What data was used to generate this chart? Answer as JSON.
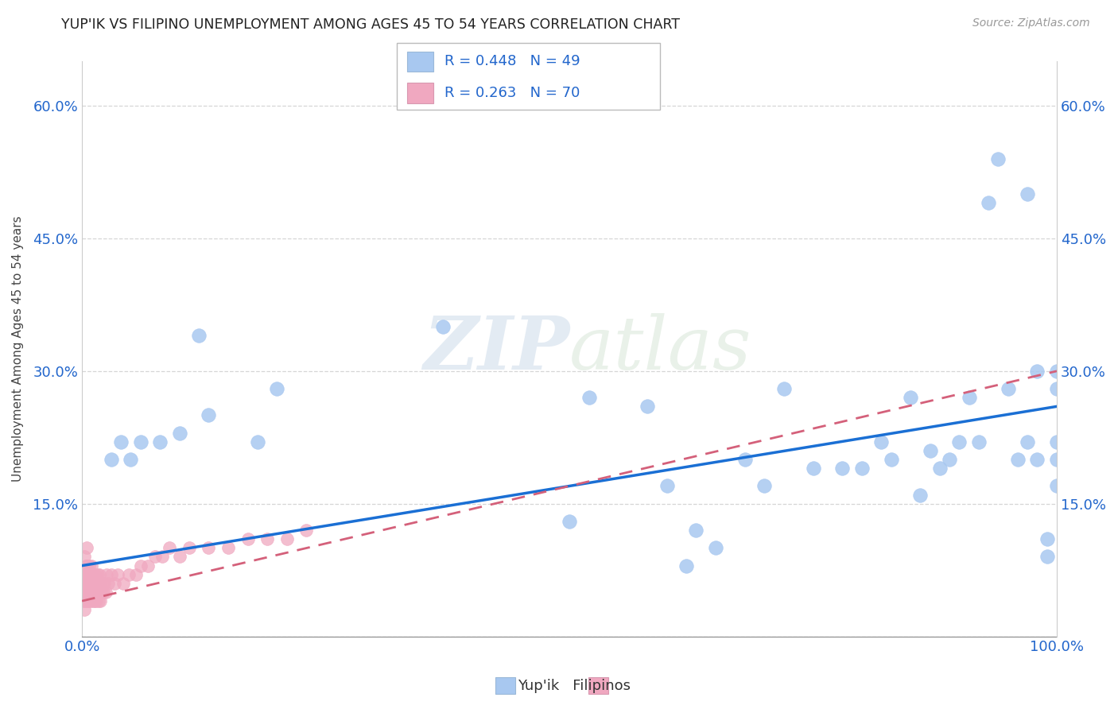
{
  "title": "YUP'IK VS FILIPINO UNEMPLOYMENT AMONG AGES 45 TO 54 YEARS CORRELATION CHART",
  "source": "Source: ZipAtlas.com",
  "ylabel": "Unemployment Among Ages 45 to 54 years",
  "xlim": [
    0.0,
    1.0
  ],
  "ylim": [
    0.0,
    0.65
  ],
  "x_ticks": [
    0.0,
    0.1,
    0.2,
    0.3,
    0.4,
    0.5,
    0.6,
    0.7,
    0.8,
    0.9,
    1.0
  ],
  "x_tick_labels": [
    "0.0%",
    "",
    "",
    "",
    "",
    "",
    "",
    "",
    "",
    "",
    "100.0%"
  ],
  "y_ticks": [
    0.0,
    0.15,
    0.3,
    0.45,
    0.6
  ],
  "y_tick_labels": [
    "",
    "15.0%",
    "30.0%",
    "45.0%",
    "60.0%"
  ],
  "legend_R": [
    "R = 0.448",
    "R = 0.263"
  ],
  "legend_N": [
    "N = 49",
    "N = 70"
  ],
  "yupik_color": "#a8c8f0",
  "filipino_color": "#f0a8c0",
  "yupik_line_color": "#1a6fd4",
  "filipino_line_color": "#d4607a",
  "watermark_zip": "ZIP",
  "watermark_atlas": "atlas",
  "yupik_x": [
    0.03,
    0.04,
    0.05,
    0.06,
    0.08,
    0.1,
    0.12,
    0.13,
    0.18,
    0.2,
    0.37,
    0.5,
    0.52,
    0.58,
    0.6,
    0.62,
    0.63,
    0.65,
    0.68,
    0.7,
    0.72,
    0.75,
    0.78,
    0.8,
    0.82,
    0.83,
    0.85,
    0.86,
    0.87,
    0.88,
    0.89,
    0.9,
    0.91,
    0.92,
    0.93,
    0.94,
    0.95,
    0.96,
    0.97,
    0.97,
    0.98,
    0.98,
    0.99,
    0.99,
    1.0,
    1.0,
    1.0,
    1.0,
    1.0
  ],
  "yupik_y": [
    0.2,
    0.22,
    0.2,
    0.22,
    0.22,
    0.23,
    0.34,
    0.25,
    0.22,
    0.28,
    0.35,
    0.13,
    0.27,
    0.26,
    0.17,
    0.08,
    0.12,
    0.1,
    0.2,
    0.17,
    0.28,
    0.19,
    0.19,
    0.19,
    0.22,
    0.2,
    0.27,
    0.16,
    0.21,
    0.19,
    0.2,
    0.22,
    0.27,
    0.22,
    0.49,
    0.54,
    0.28,
    0.2,
    0.5,
    0.22,
    0.3,
    0.2,
    0.09,
    0.11,
    0.22,
    0.17,
    0.3,
    0.28,
    0.2
  ],
  "filipino_x": [
    0.001,
    0.002,
    0.002,
    0.003,
    0.003,
    0.004,
    0.004,
    0.005,
    0.005,
    0.005,
    0.006,
    0.006,
    0.007,
    0.007,
    0.008,
    0.008,
    0.009,
    0.009,
    0.01,
    0.01,
    0.011,
    0.011,
    0.012,
    0.012,
    0.013,
    0.013,
    0.014,
    0.014,
    0.015,
    0.015,
    0.016,
    0.016,
    0.017,
    0.017,
    0.018,
    0.018,
    0.019,
    0.019,
    0.02,
    0.021,
    0.022,
    0.023,
    0.024,
    0.025,
    0.027,
    0.03,
    0.033,
    0.037,
    0.042,
    0.048,
    0.055,
    0.06,
    0.068,
    0.075,
    0.082,
    0.09,
    0.1,
    0.11,
    0.13,
    0.15,
    0.17,
    0.19,
    0.21,
    0.23,
    0.002,
    0.003,
    0.004,
    0.005,
    0.006,
    0.007
  ],
  "filipino_y": [
    0.04,
    0.05,
    0.03,
    0.06,
    0.04,
    0.05,
    0.07,
    0.04,
    0.06,
    0.08,
    0.05,
    0.07,
    0.04,
    0.06,
    0.05,
    0.07,
    0.04,
    0.06,
    0.05,
    0.08,
    0.04,
    0.06,
    0.05,
    0.07,
    0.04,
    0.06,
    0.05,
    0.07,
    0.04,
    0.06,
    0.05,
    0.07,
    0.04,
    0.06,
    0.05,
    0.07,
    0.04,
    0.06,
    0.05,
    0.06,
    0.05,
    0.06,
    0.05,
    0.07,
    0.06,
    0.07,
    0.06,
    0.07,
    0.06,
    0.07,
    0.07,
    0.08,
    0.08,
    0.09,
    0.09,
    0.1,
    0.09,
    0.1,
    0.1,
    0.1,
    0.11,
    0.11,
    0.11,
    0.12,
    0.09,
    0.07,
    0.08,
    0.1,
    0.06,
    0.08
  ],
  "yupik_reg": [
    0.08,
    0.26
  ],
  "filipino_reg": [
    0.04,
    0.3
  ]
}
